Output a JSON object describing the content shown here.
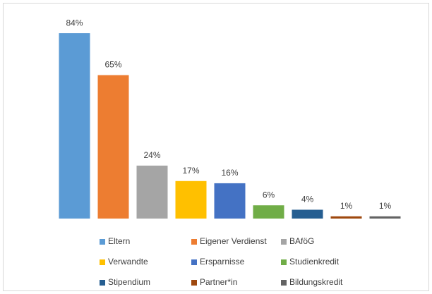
{
  "chart_data": {
    "type": "bar",
    "categories": [
      "Eltern",
      "Eigener Verdienst",
      "BAföG",
      "Verwandte",
      "Ersparnisse",
      "Studienkredit",
      "Stipendium",
      "Partner*in",
      "Bildungskredit"
    ],
    "values": [
      84,
      65,
      24,
      17,
      16,
      6,
      4,
      1,
      1
    ],
    "value_labels": [
      "84%",
      "65%",
      "24%",
      "17%",
      "16%",
      "6%",
      "4%",
      "1%",
      "1%"
    ],
    "colors": [
      "#5b9bd5",
      "#ed7d31",
      "#a5a5a5",
      "#ffc000",
      "#4472c4",
      "#70ad47",
      "#255e91",
      "#9e480e",
      "#636363"
    ]
  }
}
